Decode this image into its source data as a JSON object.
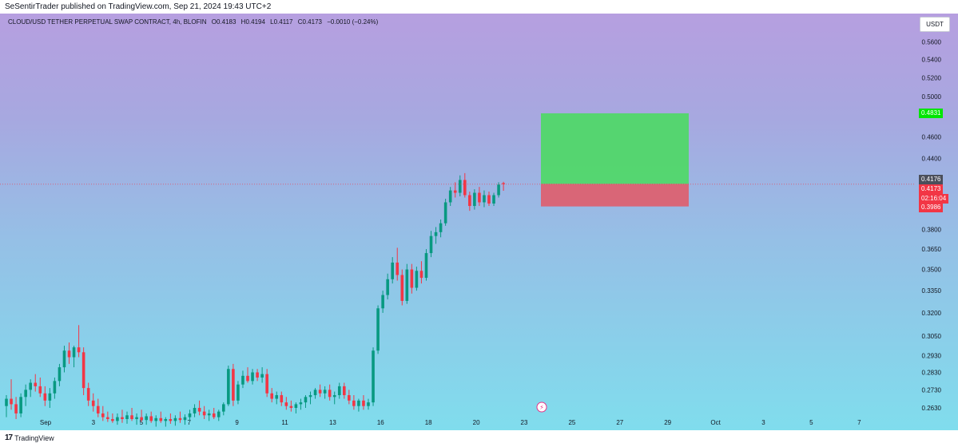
{
  "header": {
    "published_text": "SeSentirTrader published on TradingView.com, Sep 21, 2024 19:43 UTC+2"
  },
  "legend": {
    "symbol": "CLOUD/USD TETHER PERPETUAL SWAP CONTRACT, 4h, BLOFIN",
    "open": "O0.4183",
    "high": "H0.4194",
    "low": "L0.4117",
    "close": "C0.4173",
    "change": "−0.0010 (−0.24%)"
  },
  "currency_button": "USDT",
  "footer": {
    "logo_mark": "17",
    "brand": "TradingView"
  },
  "icons": {
    "flash_marker": "lightning-icon",
    "logo": "tradingview-logo-icon"
  },
  "colors": {
    "up_candle": "#089981",
    "down_candle": "#f23645",
    "target_zone": "#4cd964",
    "stop_zone": "#e05d6a",
    "target_label": "#00e600",
    "stop_label": "#f23645",
    "last_price_label": "#f23645",
    "crosshair_label": "#4b4f5b"
  },
  "chart_data": {
    "type": "candlestick",
    "timeframe": "4h",
    "y_scale": "log",
    "ylim": [
      0.257,
      0.58
    ],
    "price_ticks": [
      "0.5600",
      "0.5400",
      "0.5200",
      "0.5000",
      "0.4600",
      "0.4400",
      "0.3800",
      "0.3650",
      "0.3500",
      "0.3350",
      "0.3200",
      "0.3050",
      "0.2930",
      "0.2830",
      "0.2730",
      "0.2630"
    ],
    "x_ticks": [
      "Sep",
      "3",
      "5",
      "7",
      "9",
      "11",
      "13",
      "16",
      "18",
      "20",
      "23",
      "25",
      "27",
      "29",
      "Oct",
      "3",
      "5",
      "7"
    ],
    "position": {
      "type": "long",
      "entry": 0.4176,
      "target": 0.4831,
      "stop": 0.3986,
      "entry_label": "0.4176",
      "target_label": "0.4831",
      "stop_label": "0.3986"
    },
    "last_price": {
      "value": 0.4173,
      "label": "0.4173",
      "countdown": "02:16:04"
    },
    "candles": [
      {
        "o": 0.264,
        "h": 0.27,
        "l": 0.258,
        "c": 0.268
      },
      {
        "o": 0.268,
        "h": 0.279,
        "l": 0.262,
        "c": 0.265
      },
      {
        "o": 0.265,
        "h": 0.269,
        "l": 0.257,
        "c": 0.26
      },
      {
        "o": 0.26,
        "h": 0.271,
        "l": 0.258,
        "c": 0.269
      },
      {
        "o": 0.269,
        "h": 0.276,
        "l": 0.264,
        "c": 0.273
      },
      {
        "o": 0.273,
        "h": 0.279,
        "l": 0.269,
        "c": 0.277
      },
      {
        "o": 0.277,
        "h": 0.282,
        "l": 0.272,
        "c": 0.275
      },
      {
        "o": 0.275,
        "h": 0.28,
        "l": 0.269,
        "c": 0.271
      },
      {
        "o": 0.271,
        "h": 0.275,
        "l": 0.264,
        "c": 0.267
      },
      {
        "o": 0.267,
        "h": 0.274,
        "l": 0.263,
        "c": 0.271
      },
      {
        "o": 0.271,
        "h": 0.28,
        "l": 0.268,
        "c": 0.278
      },
      {
        "o": 0.278,
        "h": 0.288,
        "l": 0.275,
        "c": 0.286
      },
      {
        "o": 0.286,
        "h": 0.299,
        "l": 0.283,
        "c": 0.296
      },
      {
        "o": 0.296,
        "h": 0.301,
        "l": 0.288,
        "c": 0.292
      },
      {
        "o": 0.292,
        "h": 0.299,
        "l": 0.286,
        "c": 0.298
      },
      {
        "o": 0.298,
        "h": 0.312,
        "l": 0.292,
        "c": 0.295
      },
      {
        "o": 0.295,
        "h": 0.298,
        "l": 0.27,
        "c": 0.274
      },
      {
        "o": 0.274,
        "h": 0.277,
        "l": 0.264,
        "c": 0.267
      },
      {
        "o": 0.267,
        "h": 0.271,
        "l": 0.261,
        "c": 0.264
      },
      {
        "o": 0.264,
        "h": 0.268,
        "l": 0.258,
        "c": 0.26
      },
      {
        "o": 0.26,
        "h": 0.264,
        "l": 0.256,
        "c": 0.258
      },
      {
        "o": 0.258,
        "h": 0.261,
        "l": 0.2555,
        "c": 0.257
      },
      {
        "o": 0.257,
        "h": 0.26,
        "l": 0.255,
        "c": 0.256
      },
      {
        "o": 0.256,
        "h": 0.26,
        "l": 0.254,
        "c": 0.258
      },
      {
        "o": 0.258,
        "h": 0.262,
        "l": 0.255,
        "c": 0.257
      },
      {
        "o": 0.257,
        "h": 0.261,
        "l": 0.2545,
        "c": 0.259
      },
      {
        "o": 0.259,
        "h": 0.263,
        "l": 0.256,
        "c": 0.257
      },
      {
        "o": 0.257,
        "h": 0.26,
        "l": 0.254,
        "c": 0.258
      },
      {
        "o": 0.258,
        "h": 0.262,
        "l": 0.2555,
        "c": 0.2565
      },
      {
        "o": 0.2565,
        "h": 0.26,
        "l": 0.254,
        "c": 0.2585
      },
      {
        "o": 0.2585,
        "h": 0.261,
        "l": 0.255,
        "c": 0.256
      },
      {
        "o": 0.256,
        "h": 0.259,
        "l": 0.253,
        "c": 0.2575
      },
      {
        "o": 0.2575,
        "h": 0.261,
        "l": 0.255,
        "c": 0.256
      },
      {
        "o": 0.256,
        "h": 0.258,
        "l": 0.253,
        "c": 0.257
      },
      {
        "o": 0.257,
        "h": 0.26,
        "l": 0.2545,
        "c": 0.256
      },
      {
        "o": 0.256,
        "h": 0.259,
        "l": 0.2535,
        "c": 0.2575
      },
      {
        "o": 0.2575,
        "h": 0.261,
        "l": 0.255,
        "c": 0.2565
      },
      {
        "o": 0.2565,
        "h": 0.2595,
        "l": 0.254,
        "c": 0.258
      },
      {
        "o": 0.258,
        "h": 0.262,
        "l": 0.256,
        "c": 0.26
      },
      {
        "o": 0.26,
        "h": 0.265,
        "l": 0.258,
        "c": 0.263
      },
      {
        "o": 0.263,
        "h": 0.267,
        "l": 0.259,
        "c": 0.261
      },
      {
        "o": 0.261,
        "h": 0.264,
        "l": 0.257,
        "c": 0.259
      },
      {
        "o": 0.259,
        "h": 0.262,
        "l": 0.256,
        "c": 0.26
      },
      {
        "o": 0.26,
        "h": 0.263,
        "l": 0.257,
        "c": 0.258
      },
      {
        "o": 0.258,
        "h": 0.262,
        "l": 0.256,
        "c": 0.261
      },
      {
        "o": 0.261,
        "h": 0.266,
        "l": 0.259,
        "c": 0.265
      },
      {
        "o": 0.265,
        "h": 0.287,
        "l": 0.264,
        "c": 0.285
      },
      {
        "o": 0.285,
        "h": 0.288,
        "l": 0.264,
        "c": 0.267
      },
      {
        "o": 0.267,
        "h": 0.278,
        "l": 0.265,
        "c": 0.276
      },
      {
        "o": 0.276,
        "h": 0.284,
        "l": 0.274,
        "c": 0.281
      },
      {
        "o": 0.281,
        "h": 0.286,
        "l": 0.277,
        "c": 0.278
      },
      {
        "o": 0.278,
        "h": 0.285,
        "l": 0.276,
        "c": 0.283
      },
      {
        "o": 0.283,
        "h": 0.285,
        "l": 0.278,
        "c": 0.28
      },
      {
        "o": 0.28,
        "h": 0.286,
        "l": 0.277,
        "c": 0.282
      },
      {
        "o": 0.282,
        "h": 0.285,
        "l": 0.269,
        "c": 0.271
      },
      {
        "o": 0.271,
        "h": 0.274,
        "l": 0.266,
        "c": 0.268
      },
      {
        "o": 0.268,
        "h": 0.272,
        "l": 0.265,
        "c": 0.27
      },
      {
        "o": 0.27,
        "h": 0.272,
        "l": 0.264,
        "c": 0.266
      },
      {
        "o": 0.266,
        "h": 0.269,
        "l": 0.262,
        "c": 0.264
      },
      {
        "o": 0.264,
        "h": 0.267,
        "l": 0.261,
        "c": 0.263
      },
      {
        "o": 0.263,
        "h": 0.266,
        "l": 0.26,
        "c": 0.265
      },
      {
        "o": 0.265,
        "h": 0.268,
        "l": 0.262,
        "c": 0.266
      },
      {
        "o": 0.266,
        "h": 0.27,
        "l": 0.263,
        "c": 0.269
      },
      {
        "o": 0.269,
        "h": 0.272,
        "l": 0.265,
        "c": 0.27
      },
      {
        "o": 0.27,
        "h": 0.274,
        "l": 0.268,
        "c": 0.273
      },
      {
        "o": 0.273,
        "h": 0.276,
        "l": 0.269,
        "c": 0.271
      },
      {
        "o": 0.271,
        "h": 0.275,
        "l": 0.268,
        "c": 0.273
      },
      {
        "o": 0.273,
        "h": 0.276,
        "l": 0.267,
        "c": 0.269
      },
      {
        "o": 0.269,
        "h": 0.272,
        "l": 0.265,
        "c": 0.27
      },
      {
        "o": 0.27,
        "h": 0.277,
        "l": 0.268,
        "c": 0.275
      },
      {
        "o": 0.275,
        "h": 0.277,
        "l": 0.268,
        "c": 0.27
      },
      {
        "o": 0.27,
        "h": 0.273,
        "l": 0.265,
        "c": 0.267
      },
      {
        "o": 0.267,
        "h": 0.27,
        "l": 0.262,
        "c": 0.264
      },
      {
        "o": 0.264,
        "h": 0.268,
        "l": 0.261,
        "c": 0.267
      },
      {
        "o": 0.267,
        "h": 0.27,
        "l": 0.262,
        "c": 0.264
      },
      {
        "o": 0.264,
        "h": 0.268,
        "l": 0.262,
        "c": 0.266
      },
      {
        "o": 0.266,
        "h": 0.298,
        "l": 0.264,
        "c": 0.296
      },
      {
        "o": 0.296,
        "h": 0.325,
        "l": 0.294,
        "c": 0.323
      },
      {
        "o": 0.323,
        "h": 0.335,
        "l": 0.32,
        "c": 0.332
      },
      {
        "o": 0.332,
        "h": 0.347,
        "l": 0.329,
        "c": 0.343
      },
      {
        "o": 0.343,
        "h": 0.359,
        "l": 0.34,
        "c": 0.355
      },
      {
        "o": 0.355,
        "h": 0.366,
        "l": 0.342,
        "c": 0.346
      },
      {
        "o": 0.346,
        "h": 0.35,
        "l": 0.325,
        "c": 0.328
      },
      {
        "o": 0.328,
        "h": 0.354,
        "l": 0.326,
        "c": 0.35
      },
      {
        "o": 0.35,
        "h": 0.354,
        "l": 0.333,
        "c": 0.337
      },
      {
        "o": 0.337,
        "h": 0.352,
        "l": 0.335,
        "c": 0.349
      },
      {
        "o": 0.349,
        "h": 0.356,
        "l": 0.34,
        "c": 0.344
      },
      {
        "o": 0.344,
        "h": 0.365,
        "l": 0.342,
        "c": 0.362
      },
      {
        "o": 0.362,
        "h": 0.379,
        "l": 0.359,
        "c": 0.375
      },
      {
        "o": 0.375,
        "h": 0.382,
        "l": 0.369,
        "c": 0.378
      },
      {
        "o": 0.378,
        "h": 0.388,
        "l": 0.374,
        "c": 0.385
      },
      {
        "o": 0.385,
        "h": 0.405,
        "l": 0.383,
        "c": 0.402
      },
      {
        "o": 0.402,
        "h": 0.415,
        "l": 0.399,
        "c": 0.412
      },
      {
        "o": 0.412,
        "h": 0.419,
        "l": 0.406,
        "c": 0.41
      },
      {
        "o": 0.41,
        "h": 0.425,
        "l": 0.407,
        "c": 0.421
      },
      {
        "o": 0.421,
        "h": 0.427,
        "l": 0.406,
        "c": 0.408
      },
      {
        "o": 0.408,
        "h": 0.411,
        "l": 0.395,
        "c": 0.399
      },
      {
        "o": 0.399,
        "h": 0.413,
        "l": 0.396,
        "c": 0.41
      },
      {
        "o": 0.41,
        "h": 0.415,
        "l": 0.399,
        "c": 0.402
      },
      {
        "o": 0.402,
        "h": 0.412,
        "l": 0.398,
        "c": 0.408
      },
      {
        "o": 0.408,
        "h": 0.411,
        "l": 0.399,
        "c": 0.401
      },
      {
        "o": 0.401,
        "h": 0.41,
        "l": 0.399,
        "c": 0.408
      },
      {
        "o": 0.408,
        "h": 0.419,
        "l": 0.406,
        "c": 0.417
      },
      {
        "o": 0.4183,
        "h": 0.4194,
        "l": 0.4117,
        "c": 0.4173
      }
    ]
  }
}
